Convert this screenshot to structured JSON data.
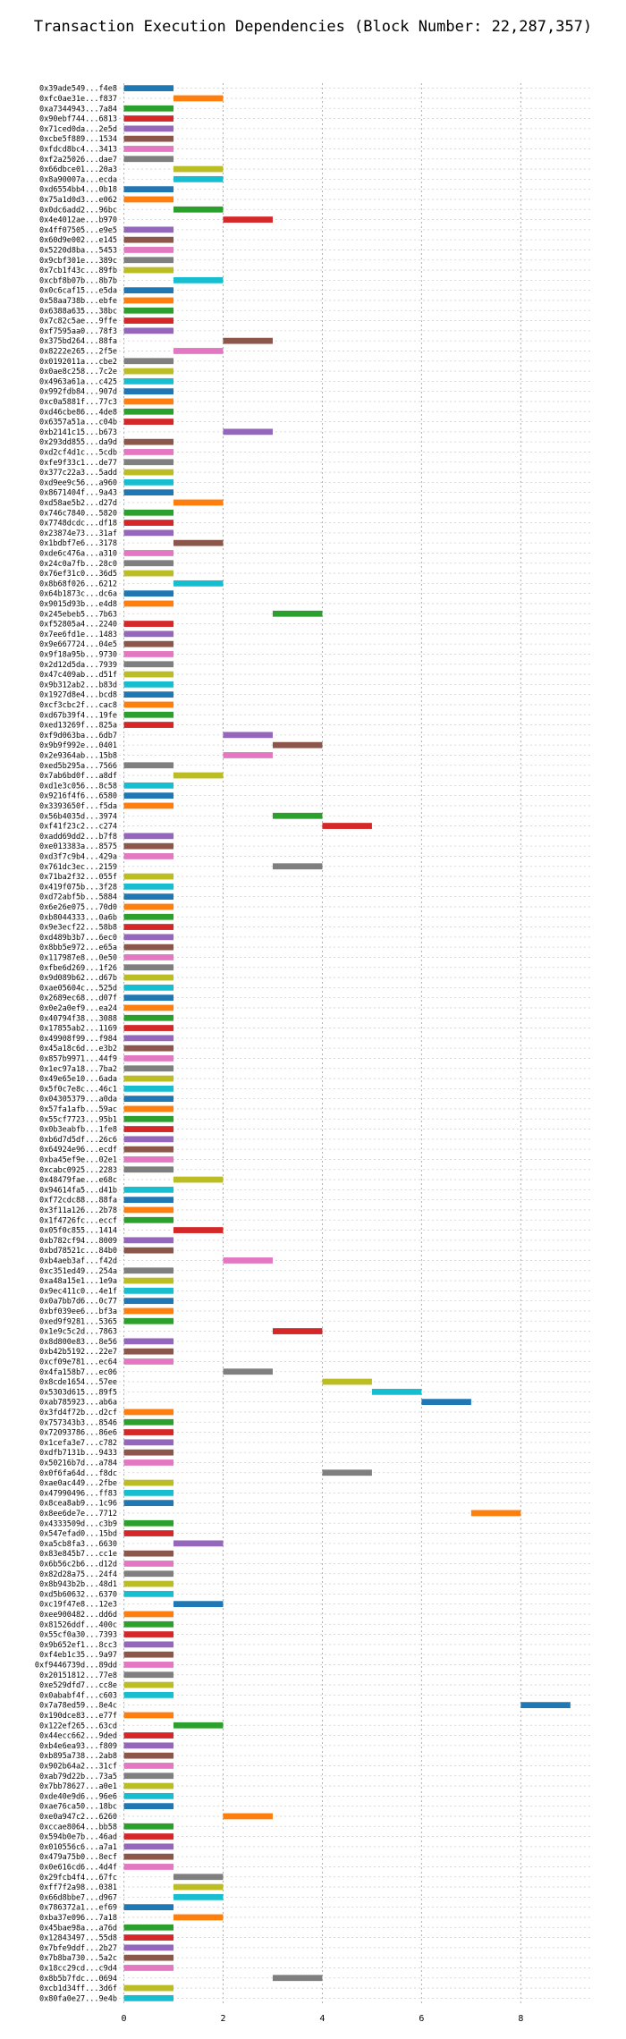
{
  "chart_data": {
    "type": "bar",
    "orientation": "horizontal",
    "title": "Transaction Execution Dependencies (Block Number: 22,287,357)",
    "xlabel": "",
    "ylabel": "",
    "xlim": [
      -0.1,
      9.4
    ],
    "xticks": [
      0,
      2,
      4,
      6,
      8
    ],
    "grid": true,
    "legend": "none",
    "palette": [
      "#1f77b4",
      "#ff7f0e",
      "#2ca02c",
      "#d62728",
      "#9467bd",
      "#8c564b",
      "#e377c2",
      "#7f7f7f",
      "#bcbd22",
      "#17becf"
    ],
    "categories": [
      "0x39ade549...f4e8",
      "0xfc0ae31e...f837",
      "0xa7344943...7a84",
      "0x90ebf744...6813",
      "0x71ced0da...2e5d",
      "0xcbe5f889...1534",
      "0xfdcd8bc4...3413",
      "0xf2a25026...dae7",
      "0x66dbce01...20a3",
      "0x8a90007a...ecda",
      "0xd6554bb4...0b18",
      "0x75a1d0d3...e062",
      "0x0dc6add2...96bc",
      "0x4e4012ae...b970",
      "0x4ff07505...e9e5",
      "0x60d9e002...e145",
      "0x5220d8ba...5453",
      "0x9cbf301e...389c",
      "0x7cb1f43c...89fb",
      "0xcbf8b07b...8b7b",
      "0x0c6caf15...e5da",
      "0x58aa738b...ebfe",
      "0x6388a635...38bc",
      "0x7c82c5ae...9ffe",
      "0xf7595aa0...78f3",
      "0x375bd264...88fa",
      "0x8222e265...2f5e",
      "0x0192011a...cbe2",
      "0x0ae8c258...7c2e",
      "0x4963a61a...c425",
      "0x992fdb84...907d",
      "0xc0a5881f...77c3",
      "0xd46cbe86...4de8",
      "0x6357a51a...c04b",
      "0xb2141c15...b673",
      "0x293dd855...da9d",
      "0xd2cf4d1c...5cdb",
      "0xfe9f33c1...de77",
      "0x377c22a3...5add",
      "0xd9ee9c56...a960",
      "0x8671404f...9a43",
      "0xd58ae5b2...d27d",
      "0x746c7840...5820",
      "0x7748dcdc...df18",
      "0x23874e73...31af",
      "0x1bdbf7e6...3178",
      "0xde6c476a...a310",
      "0x24c0a7fb...28c0",
      "0x76ef31c0...36d5",
      "0x8b68f026...6212",
      "0x64b1873c...dc6a",
      "0x9015d93b...e4d8",
      "0x245ebeb5...7b63",
      "0xf52805a4...2240",
      "0x7ee6fd1e...1483",
      "0x9e667724...04e5",
      "0x9f18a95b...9730",
      "0x2d12d5da...7939",
      "0x47c409ab...d51f",
      "0x9b312ab2...b83d",
      "0x1927d8e4...bcd8",
      "0xcf3cbc2f...cac8",
      "0xd67b39f4...19fe",
      "0xed13269f...825a",
      "0xf9d063ba...6db7",
      "0x9b9f992e...0401",
      "0x2e9364ab...15b8",
      "0xed5b295a...7566",
      "0x7ab6bd0f...a8df",
      "0xd1e3c056...8c58",
      "0x9216f4f6...6580",
      "0x3393650f...f5da",
      "0x56b4035d...3974",
      "0xf41f23c2...c274",
      "0xadd69dd2...b7f8",
      "0xe013383a...8575",
      "0xd3f7c9b4...429a",
      "0x761dc3ec...2159",
      "0x71ba2f32...055f",
      "0x419f075b...3f28",
      "0xd72abf5b...5884",
      "0x6e26e075...70d0",
      "0xb8044333...0a6b",
      "0x9e3ecf22...58b8",
      "0xd489b3b7...6ec0",
      "0x8bb5e972...e65a",
      "0x117987e8...0e50",
      "0xfbe6d269...1f26",
      "0x9d089b62...d67b",
      "0xae05604c...525d",
      "0x2689ec68...d07f",
      "0x0e2a0ef9...ea24",
      "0x40794f38...3088",
      "0x17855ab2...1169",
      "0x49908f99...f984",
      "0x45a18c6d...e3b2",
      "0x857b9971...44f9",
      "0x1ec97a18...7ba2",
      "0x49e65e10...6ada",
      "0x5f0c7e8c...46c1",
      "0x04305379...a0da",
      "0x57fa1afb...59ac",
      "0x55cf7723...95b1",
      "0x0b3eabfb...1fe8",
      "0xb6d7d5df...26c6",
      "0x64924e96...ecdf",
      "0xba45ef9e...02e1",
      "0xcabc0925...2283",
      "0x48479fae...e68c",
      "0x94614fa5...d41b",
      "0xf72cdc88...88fa",
      "0x3f11a126...2b78",
      "0x1f4726fc...eccf",
      "0x05f0c855...1414",
      "0xb782cf94...8009",
      "0xbd78521c...84b0",
      "0xb4aeb3af...f42d",
      "0xc351ed49...254a",
      "0xa48a15e1...1e9a",
      "0x9ec411c0...4e1f",
      "0x0a7bb7d6...0c77",
      "0xbf039ee6...bf3a",
      "0xed9f9281...5365",
      "0x1e9c5c2d...7863",
      "0x8d800e83...8e56",
      "0xb42b5192...22e7",
      "0xcf09e781...ec64",
      "0x4fa158b7...ec06",
      "0x8cde1654...57ee",
      "0x5303d615...89f5",
      "0xab785923...ab6a",
      "0x3fd4f72b...d2cf",
      "0x757343b3...8546",
      "0x72093786...86e6",
      "0x1cefa3e7...c782",
      "0xdfb7131b...9433",
      "0x50216b7d...a784",
      "0x0f6fa64d...f8dc",
      "0xae0ac449...2fbe",
      "0x47990496...ff83",
      "0x8cea8ab9...1c96",
      "0x8ee6de7e...7712",
      "0x4333509d...c3b9",
      "0x547efad0...15bd",
      "0xa5cb8fa3...6630",
      "0x83e845b7...cc1e",
      "0x6b56c2b6...d12d",
      "0x82d28a75...24f4",
      "0x8b943b2b...48d1",
      "0xd5b60632...6370",
      "0xc19f47e8...12e3",
      "0xee900482...dd6d",
      "0x81526ddf...400c",
      "0x55cf0a30...7393",
      "0x9b652ef1...8cc3",
      "0xf4eb1c35...9a97",
      "0xf9446739d...89dd",
      "0x20151812...77e8",
      "0xe529dfd7...cc8e",
      "0x0ababf4f...c603",
      "0x7a78ed59...8e4c",
      "0x190dce83...e77f",
      "0x122ef265...63cd",
      "0x44ecc662...9ded",
      "0xb4e6ea93...f809",
      "0xb895a738...2ab8",
      "0x902b64a2...31cf",
      "0xab79d22b...73a5",
      "0x7bb78627...a0e1",
      "0xde40e9d6...96e6",
      "0xae76ca50...18bc",
      "0xe0a947c2...6260",
      "0xccae8064...bb58",
      "0x594b0e7b...46ad",
      "0x010556c6...a7a1",
      "0x479a75b0...8ecf",
      "0x0e616cd6...4d4f",
      "0x29fcb4f4...67fc",
      "0xff7f2a98...0381",
      "0x66d8bbe7...d967",
      "0x786372a1...ef69",
      "0xba37e096...7a18",
      "0x45bae98a...a76d",
      "0x12843497...55d8",
      "0x7bfe9ddf...2b27",
      "0x7b8ba730...5a2c",
      "0x18cc29cd...c9d4",
      "0x8b5b7fdc...0694",
      "0xcb1d34ff...3d6f",
      "0x80fa0e27...9e4b"
    ],
    "values": [
      [
        0,
        1
      ],
      [
        1,
        2
      ],
      [
        0,
        1
      ],
      [
        0,
        1
      ],
      [
        0,
        1
      ],
      [
        0,
        1
      ],
      [
        0,
        1
      ],
      [
        0,
        1
      ],
      [
        1,
        2
      ],
      [
        1,
        2
      ],
      [
        0,
        1
      ],
      [
        0,
        1
      ],
      [
        1,
        2
      ],
      [
        2,
        3
      ],
      [
        0,
        1
      ],
      [
        0,
        1
      ],
      [
        0,
        1
      ],
      [
        0,
        1
      ],
      [
        0,
        1
      ],
      [
        1,
        2
      ],
      [
        0,
        1
      ],
      [
        0,
        1
      ],
      [
        0,
        1
      ],
      [
        0,
        1
      ],
      [
        0,
        1
      ],
      [
        2,
        3
      ],
      [
        1,
        2
      ],
      [
        0,
        1
      ],
      [
        0,
        1
      ],
      [
        0,
        1
      ],
      [
        0,
        1
      ],
      [
        0,
        1
      ],
      [
        0,
        1
      ],
      [
        0,
        1
      ],
      [
        2,
        3
      ],
      [
        0,
        1
      ],
      [
        0,
        1
      ],
      [
        0,
        1
      ],
      [
        0,
        1
      ],
      [
        0,
        1
      ],
      [
        0,
        1
      ],
      [
        1,
        2
      ],
      [
        0,
        1
      ],
      [
        0,
        1
      ],
      [
        0,
        1
      ],
      [
        1,
        2
      ],
      [
        0,
        1
      ],
      [
        0,
        1
      ],
      [
        0,
        1
      ],
      [
        1,
        2
      ],
      [
        0,
        1
      ],
      [
        0,
        1
      ],
      [
        3,
        4
      ],
      [
        0,
        1
      ],
      [
        0,
        1
      ],
      [
        0,
        1
      ],
      [
        0,
        1
      ],
      [
        0,
        1
      ],
      [
        0,
        1
      ],
      [
        0,
        1
      ],
      [
        0,
        1
      ],
      [
        0,
        1
      ],
      [
        0,
        1
      ],
      [
        0,
        1
      ],
      [
        2,
        3
      ],
      [
        3,
        4
      ],
      [
        2,
        3
      ],
      [
        0,
        1
      ],
      [
        1,
        2
      ],
      [
        0,
        1
      ],
      [
        0,
        1
      ],
      [
        0,
        1
      ],
      [
        3,
        4
      ],
      [
        4,
        5
      ],
      [
        0,
        1
      ],
      [
        0,
        1
      ],
      [
        0,
        1
      ],
      [
        3,
        4
      ],
      [
        0,
        1
      ],
      [
        0,
        1
      ],
      [
        0,
        1
      ],
      [
        0,
        1
      ],
      [
        0,
        1
      ],
      [
        0,
        1
      ],
      [
        0,
        1
      ],
      [
        0,
        1
      ],
      [
        0,
        1
      ],
      [
        0,
        1
      ],
      [
        0,
        1
      ],
      [
        0,
        1
      ],
      [
        0,
        1
      ],
      [
        0,
        1
      ],
      [
        0,
        1
      ],
      [
        0,
        1
      ],
      [
        0,
        1
      ],
      [
        0,
        1
      ],
      [
        0,
        1
      ],
      [
        0,
        1
      ],
      [
        0,
        1
      ],
      [
        0,
        1
      ],
      [
        0,
        1
      ],
      [
        0,
        1
      ],
      [
        0,
        1
      ],
      [
        0,
        1
      ],
      [
        0,
        1
      ],
      [
        0,
        1
      ],
      [
        0,
        1
      ],
      [
        0,
        1
      ],
      [
        1,
        2
      ],
      [
        0,
        1
      ],
      [
        0,
        1
      ],
      [
        0,
        1
      ],
      [
        0,
        1
      ],
      [
        1,
        2
      ],
      [
        0,
        1
      ],
      [
        0,
        1
      ],
      [
        2,
        3
      ],
      [
        0,
        1
      ],
      [
        0,
        1
      ],
      [
        0,
        1
      ],
      [
        0,
        1
      ],
      [
        0,
        1
      ],
      [
        0,
        1
      ],
      [
        3,
        4
      ],
      [
        0,
        1
      ],
      [
        0,
        1
      ],
      [
        0,
        1
      ],
      [
        2,
        3
      ],
      [
        4,
        5
      ],
      [
        5,
        6
      ],
      [
        6,
        7
      ],
      [
        0,
        1
      ],
      [
        0,
        1
      ],
      [
        0,
        1
      ],
      [
        0,
        1
      ],
      [
        0,
        1
      ],
      [
        0,
        1
      ],
      [
        4,
        5
      ],
      [
        0,
        1
      ],
      [
        0,
        1
      ],
      [
        0,
        1
      ],
      [
        7,
        8
      ],
      [
        0,
        1
      ],
      [
        0,
        1
      ],
      [
        1,
        2
      ],
      [
        0,
        1
      ],
      [
        0,
        1
      ],
      [
        0,
        1
      ],
      [
        0,
        1
      ],
      [
        0,
        1
      ],
      [
        1,
        2
      ],
      [
        0,
        1
      ],
      [
        0,
        1
      ],
      [
        0,
        1
      ],
      [
        0,
        1
      ],
      [
        0,
        1
      ],
      [
        0,
        1
      ],
      [
        0,
        1
      ],
      [
        0,
        1
      ],
      [
        0,
        1
      ],
      [
        8,
        9
      ],
      [
        0,
        1
      ],
      [
        1,
        2
      ],
      [
        0,
        1
      ],
      [
        0,
        1
      ],
      [
        0,
        1
      ],
      [
        0,
        1
      ],
      [
        0,
        1
      ],
      [
        0,
        1
      ],
      [
        0,
        1
      ],
      [
        0,
        1
      ],
      [
        2,
        3
      ],
      [
        0,
        1
      ],
      [
        0,
        1
      ],
      [
        0,
        1
      ],
      [
        0,
        1
      ],
      [
        0,
        1
      ],
      [
        1,
        2
      ],
      [
        1,
        2
      ],
      [
        1,
        2
      ],
      [
        0,
        1
      ],
      [
        1,
        2
      ],
      [
        0,
        1
      ],
      [
        0,
        1
      ],
      [
        0,
        1
      ],
      [
        0,
        1
      ],
      [
        0,
        1
      ],
      [
        3,
        4
      ],
      [
        0,
        1
      ],
      [
        0,
        1
      ]
    ],
    "colors": [
      0,
      1,
      2,
      3,
      4,
      5,
      6,
      7,
      8,
      9,
      0,
      1,
      2,
      3,
      4,
      5,
      6,
      7,
      8,
      9,
      0,
      1,
      2,
      3,
      4,
      5,
      6,
      7,
      8,
      9,
      0,
      1,
      2,
      3,
      4,
      5,
      6,
      7,
      8,
      9,
      0,
      1,
      2,
      3,
      4,
      5,
      6,
      7,
      8,
      9,
      0,
      1,
      2,
      3,
      4,
      5,
      6,
      7,
      8,
      9,
      0,
      1,
      2,
      3,
      4,
      5,
      6,
      7,
      8,
      9,
      0,
      1,
      2,
      3,
      4,
      5,
      6,
      7,
      8,
      9,
      0,
      1,
      2,
      3,
      4,
      5,
      6,
      7,
      8,
      9,
      0,
      1,
      2,
      3,
      4,
      5,
      6,
      7,
      8,
      9,
      0,
      1,
      2,
      3,
      4,
      5,
      6,
      7,
      8,
      9,
      0,
      1,
      2,
      3,
      4,
      5,
      6,
      7,
      8,
      9,
      0,
      1,
      2,
      3,
      4,
      5,
      6,
      7,
      8,
      9,
      0,
      1,
      2,
      3,
      4,
      5,
      6,
      7,
      8,
      9,
      0,
      1,
      2,
      3,
      4,
      5,
      6,
      7,
      8,
      9,
      0,
      1,
      2,
      3,
      4,
      5,
      6,
      7,
      8,
      9,
      0,
      1,
      2,
      3,
      4,
      5,
      6,
      7,
      8,
      9,
      0,
      1,
      2,
      3,
      4,
      5,
      6,
      7,
      8,
      9,
      0,
      1,
      2,
      3,
      4,
      5,
      6,
      7,
      8,
      9
    ]
  }
}
